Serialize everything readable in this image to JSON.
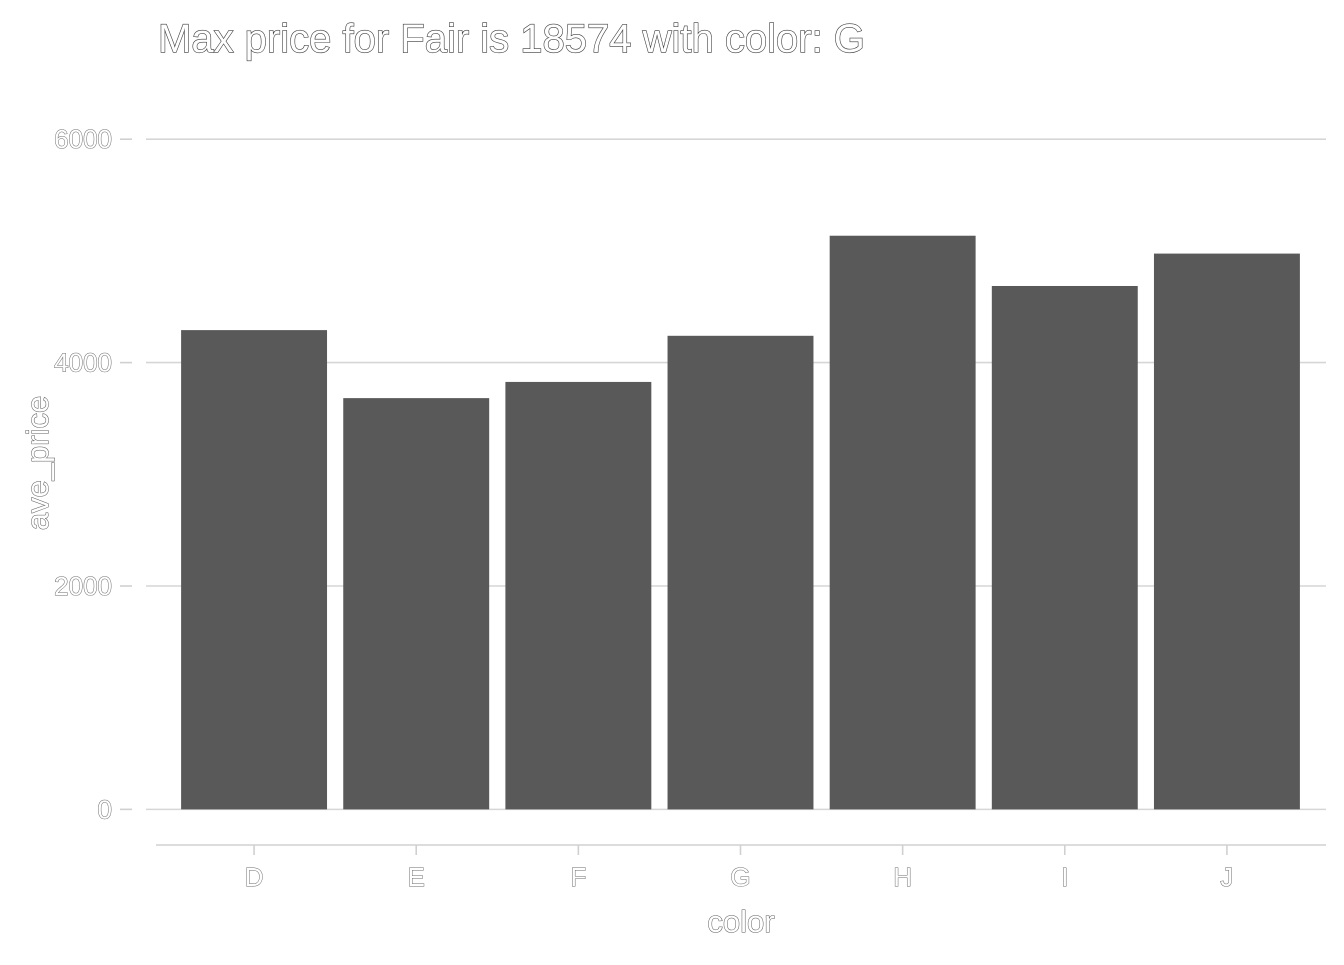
{
  "chart_data": {
    "type": "bar",
    "title": "Max price for Fair is 18574 with color: G",
    "xlabel": "color",
    "ylabel": "ave_price",
    "categories": [
      "D",
      "E",
      "F",
      "G",
      "H",
      "I",
      "J"
    ],
    "values": [
      4291,
      3682,
      3827,
      4240,
      5136,
      4686,
      4976
    ],
    "ylim": [
      -310,
      6190
    ],
    "yticks": [
      0,
      2000,
      4000,
      6000
    ],
    "grid": true,
    "bar_color": "#595959",
    "legend": "none"
  }
}
